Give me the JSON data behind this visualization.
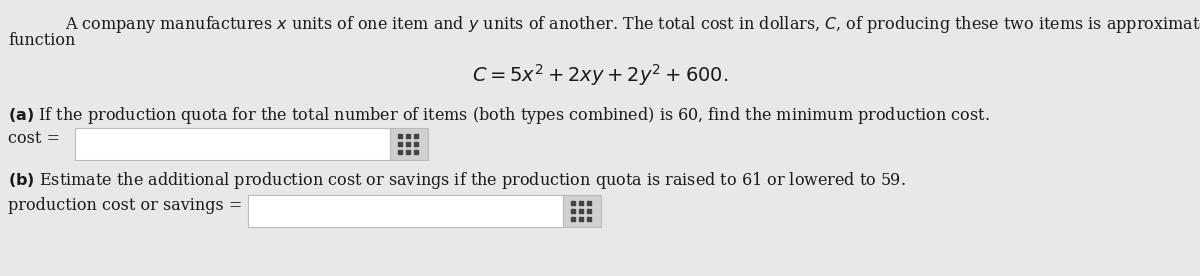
{
  "background_color": "#e8e8e8",
  "text_color": "#1a1a1a",
  "input_box_color": "#ffffff",
  "input_box_border": "#bbbbbb",
  "grid_box_color": "#d0d0d0",
  "grid_dot_color": "#444444",
  "font_size_body": 11.5,
  "font_size_formula": 14,
  "line1": "A company manufactures $x$ units of one item and $y$ units of another. The total cost in dollars, $C$, of producing these two items is approximated by the",
  "line2": "function",
  "formula": "$C = 5x^2 + 2xy + 2y^2 + 600.$",
  "part_a": "\\textbf{(a)} If the production quota for the total number of items (both types combined) is 60, find the minimum production cost.",
  "cost_label": "cost =",
  "part_b": "\\textbf{(b)} Estimate the additional production cost or savings if the production quota is raised to 61 or lowered to 59.",
  "savings_label": "production cost or savings ="
}
